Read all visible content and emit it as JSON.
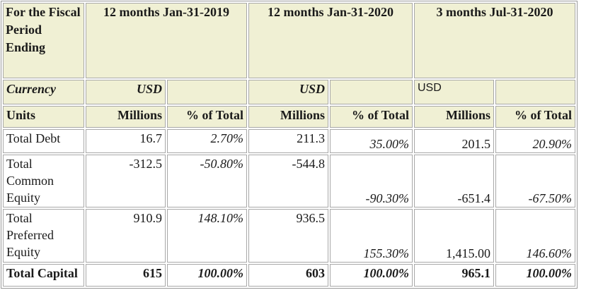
{
  "header": {
    "corner": "For the Fiscal Period Ending",
    "periods": [
      "12 months Jan-31-2019",
      "12 months Jan-31-2020",
      "3 months Jul-31-2020"
    ]
  },
  "currency_row": {
    "label": "Currency",
    "values": [
      "USD",
      "USD",
      "USD"
    ]
  },
  "units_row": {
    "label": "Units",
    "millions": "Millions",
    "pct": "% of Total"
  },
  "rows": [
    {
      "label": "Total Debt",
      "cells": [
        "16.7",
        "2.70%",
        "211.3",
        "35.00%",
        "201.5",
        "20.90%"
      ]
    },
    {
      "label": "Total Common Equity",
      "cells": [
        "-312.5",
        "-50.80%",
        "-544.8",
        "-90.30%",
        "-651.4",
        "-67.50%"
      ]
    },
    {
      "label": "Total Preferred Equity",
      "cells": [
        "910.9",
        "148.10%",
        "936.5",
        "155.30%",
        "1,415.00",
        "146.60%"
      ]
    },
    {
      "label": "Total Capital",
      "cells": [
        "615",
        "100.00%",
        "603",
        "100.00%",
        "965.1",
        "100.00%"
      ]
    }
  ]
}
